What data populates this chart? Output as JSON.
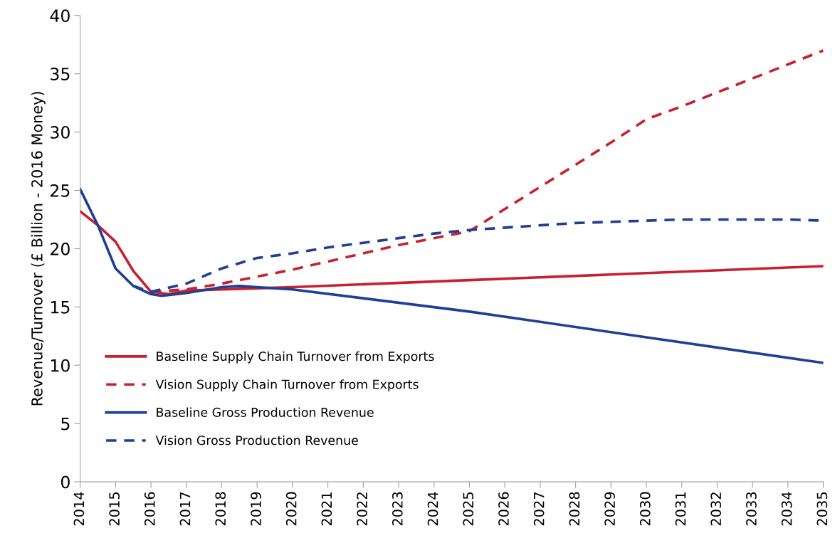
{
  "chart_data": {
    "type": "line",
    "ylabel": "Revenue/Turnover (£ Billion - 2016 Money)",
    "xlim": [
      2014,
      2035
    ],
    "xticks": [
      2014,
      2015,
      2016,
      2017,
      2018,
      2019,
      2020,
      2021,
      2022,
      2023,
      2024,
      2025,
      2026,
      2027,
      2028,
      2029,
      2030,
      2031,
      2032,
      2033,
      2034,
      2035
    ],
    "ylim": [
      0,
      40
    ],
    "yticks": [
      0,
      5,
      10,
      15,
      20,
      25,
      30,
      35,
      40
    ],
    "grid": false,
    "legend": "bottom left",
    "marker": "none",
    "series": [
      {
        "name": "Baseline Supply Chain Turnover from Exports",
        "color": "#c8202f",
        "line_style": "solid",
        "x": [
          2014,
          2014.5,
          2015,
          2015.5,
          2016,
          2016.5,
          2017,
          2018,
          2019,
          2020,
          2025,
          2030,
          2035
        ],
        "values": [
          23.2,
          22.0,
          20.6,
          18.1,
          16.3,
          16.1,
          16.4,
          16.5,
          16.6,
          16.7,
          17.3,
          17.9,
          18.5
        ]
      },
      {
        "name": "Vision Supply Chain Turnover from Exports",
        "color": "#c8202f",
        "line_style": "dashed",
        "x": [
          2016,
          2017,
          2018,
          2019,
          2020,
          2021,
          2022,
          2023,
          2024,
          2025,
          2026,
          2027,
          2028,
          2029,
          2030,
          2031,
          2032,
          2033,
          2034,
          2035
        ],
        "values": [
          16.3,
          16.5,
          17.0,
          17.6,
          18.2,
          18.9,
          19.6,
          20.3,
          20.9,
          21.5,
          23.4,
          25.3,
          27.2,
          29.1,
          31.1,
          32.2,
          33.4,
          34.6,
          35.8,
          37.0
        ]
      },
      {
        "name": "Baseline Gross Production Revenue",
        "color": "#1f3f94",
        "line_style": "solid",
        "x": [
          2014,
          2014.5,
          2015,
          2015.5,
          2016,
          2016.3,
          2017,
          2018,
          2018.5,
          2019,
          2020,
          2025,
          2030,
          2035
        ],
        "values": [
          25.1,
          22.0,
          18.3,
          16.8,
          16.1,
          15.95,
          16.2,
          16.7,
          16.8,
          16.7,
          16.5,
          14.6,
          12.4,
          10.2
        ]
      },
      {
        "name": "Vision Gross Production Revenue",
        "color": "#1f3f94",
        "line_style": "dashed",
        "x": [
          2015.5,
          2016,
          2017,
          2018,
          2019,
          2020,
          2021,
          2022,
          2023,
          2024,
          2025,
          2026,
          2027,
          2028,
          2029,
          2030,
          2031,
          2032,
          2033,
          2034,
          2035
        ],
        "values": [
          16.8,
          16.3,
          17.0,
          18.3,
          19.2,
          19.6,
          20.1,
          20.5,
          20.9,
          21.3,
          21.6,
          21.8,
          22.0,
          22.2,
          22.3,
          22.4,
          22.5,
          22.5,
          22.5,
          22.5,
          22.4
        ]
      }
    ]
  }
}
